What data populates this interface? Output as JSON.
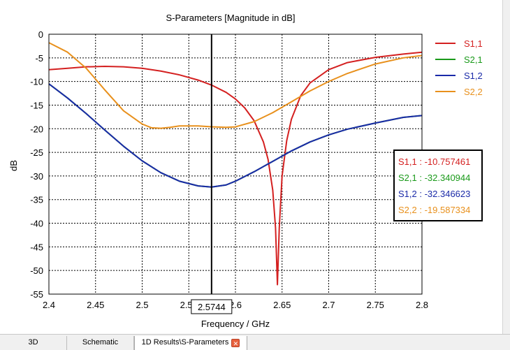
{
  "chart_data": {
    "type": "line",
    "title": "S-Parameters [Magnitude in dB]",
    "xlabel": "Frequency / GHz",
    "ylabel": "dB",
    "xlim": [
      2.4,
      2.8
    ],
    "ylim": [
      -55,
      0
    ],
    "xticks": [
      "2.4",
      "2.45",
      "2.5",
      "2.55",
      "2.6",
      "2.65",
      "2.7",
      "2.75",
      "2.8"
    ],
    "yticks": [
      "0",
      "-5",
      "-10",
      "-15",
      "-20",
      "-25",
      "-30",
      "-35",
      "-40",
      "-45",
      "-50",
      "-55"
    ],
    "grid": true,
    "legend_position": "right",
    "marker": {
      "x": 2.5744,
      "label": "2.5744"
    },
    "series": [
      {
        "name": "S1,1",
        "color": "#d42020",
        "x": [
          2.4,
          2.42,
          2.44,
          2.46,
          2.48,
          2.5,
          2.52,
          2.54,
          2.56,
          2.5744,
          2.59,
          2.6,
          2.61,
          2.62,
          2.63,
          2.635,
          2.64,
          2.643,
          2.645,
          2.647,
          2.65,
          2.655,
          2.66,
          2.67,
          2.68,
          2.7,
          2.72,
          2.75,
          2.78,
          2.8
        ],
        "values": [
          -7.5,
          -7.2,
          -6.9,
          -6.8,
          -6.9,
          -7.2,
          -7.8,
          -8.6,
          -9.7,
          -10.76,
          -12.3,
          -13.7,
          -15.6,
          -18.3,
          -22.8,
          -26.5,
          -33,
          -41,
          -53,
          -41,
          -30,
          -22.5,
          -18,
          -13,
          -10.3,
          -7.5,
          -6,
          -4.9,
          -4.2,
          -3.8
        ]
      },
      {
        "name": "S2,1",
        "color": "#1a9a1a",
        "x": [
          2.4,
          2.42,
          2.44,
          2.46,
          2.48,
          2.5,
          2.52,
          2.54,
          2.56,
          2.5744,
          2.59,
          2.6,
          2.62,
          2.64,
          2.66,
          2.68,
          2.7,
          2.72,
          2.75,
          2.78,
          2.8
        ],
        "values": [
          -10.5,
          -13.5,
          -16.8,
          -20.3,
          -23.7,
          -26.8,
          -29.3,
          -31.1,
          -32.1,
          -32.34,
          -31.9,
          -31.1,
          -29.1,
          -26.9,
          -24.7,
          -22.8,
          -21.3,
          -20.1,
          -18.8,
          -17.6,
          -17.2
        ]
      },
      {
        "name": "S1,2",
        "color": "#1a2aa8",
        "x": [
          2.4,
          2.42,
          2.44,
          2.46,
          2.48,
          2.5,
          2.52,
          2.54,
          2.56,
          2.5744,
          2.59,
          2.6,
          2.62,
          2.64,
          2.66,
          2.68,
          2.7,
          2.72,
          2.75,
          2.78,
          2.8
        ],
        "values": [
          -10.5,
          -13.5,
          -16.8,
          -20.3,
          -23.7,
          -26.8,
          -29.3,
          -31.1,
          -32.1,
          -32.35,
          -31.9,
          -31.1,
          -29.1,
          -26.9,
          -24.7,
          -22.8,
          -21.3,
          -20.1,
          -18.8,
          -17.6,
          -17.2
        ]
      },
      {
        "name": "S2,2",
        "color": "#e8901c",
        "x": [
          2.4,
          2.42,
          2.44,
          2.46,
          2.48,
          2.5,
          2.51,
          2.52,
          2.53,
          2.54,
          2.56,
          2.5744,
          2.59,
          2.6,
          2.62,
          2.64,
          2.66,
          2.68,
          2.7,
          2.72,
          2.75,
          2.78,
          2.8
        ],
        "values": [
          -1.8,
          -3.8,
          -7.2,
          -11.8,
          -16.2,
          -19.0,
          -19.8,
          -19.9,
          -19.7,
          -19.4,
          -19.4,
          -19.59,
          -19.7,
          -19.6,
          -18.5,
          -16.6,
          -14.3,
          -12.0,
          -10.0,
          -8.3,
          -6.3,
          -5.0,
          -4.5
        ]
      }
    ]
  },
  "readout": [
    {
      "text": "S1,1 : -10.757461",
      "color": "#d42020"
    },
    {
      "text": "S2,1 : -32.340944",
      "color": "#1a9a1a"
    },
    {
      "text": "S1,2 : -32.346623",
      "color": "#1a2aa8"
    },
    {
      "text": "S2,2 : -19.587334",
      "color": "#e8901c"
    }
  ],
  "tabs": [
    {
      "label": "3D",
      "active": false
    },
    {
      "label": "Schematic",
      "active": false
    },
    {
      "label": "1D Results\\S-Parameters",
      "active": true
    }
  ]
}
